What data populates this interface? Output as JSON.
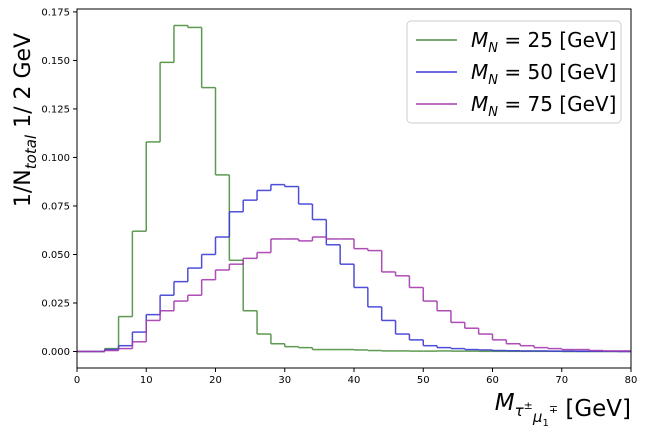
{
  "chart_data": {
    "type": "line",
    "step": true,
    "xlabel": "M_{τ^± μ_1^∓}  [GeV]",
    "ylabel": "1/N_{total} 1/ 2 GeV",
    "xlim": [
      0,
      80
    ],
    "ylim": [
      -0.0085,
      0.1765
    ],
    "xticks": [
      "0",
      "10",
      "20",
      "30",
      "40",
      "50",
      "60",
      "70",
      "80"
    ],
    "yticks": [
      "0.000",
      "0.025",
      "0.050",
      "0.075",
      "0.100",
      "0.125",
      "0.150",
      "0.175"
    ],
    "grid": false,
    "legend_position": "top-right",
    "bin_edges": [
      0,
      2,
      4,
      6,
      8,
      10,
      12,
      14,
      16,
      18,
      20,
      22,
      24,
      26,
      28,
      30,
      32,
      34,
      36,
      38,
      40,
      42,
      44,
      46,
      48,
      50,
      52,
      54,
      56,
      58,
      60,
      62,
      64,
      66,
      68,
      70,
      72,
      74,
      76,
      78,
      80
    ],
    "series": [
      {
        "name": "M_N = 25 [GeV]",
        "color": "#4c8f3f",
        "values": [
          0.0,
          0.0,
          0.0015,
          0.018,
          0.062,
          0.108,
          0.149,
          0.168,
          0.167,
          0.136,
          0.091,
          0.047,
          0.021,
          0.009,
          0.004,
          0.0025,
          0.002,
          0.001,
          0.001,
          0.001,
          0.0008,
          0.0005,
          0.0003,
          0.0003,
          0.0002,
          0.0002,
          0.0003,
          0.0002,
          0.0002,
          0.0001,
          0.0001,
          0.0001,
          0.0001,
          0.0001,
          0.0001,
          0.0,
          0.0,
          0.0,
          0.0,
          0.0
        ]
      },
      {
        "name": "M_N = 50 [GeV]",
        "color": "#3b3bd6",
        "values": [
          0.0,
          0.0,
          0.001,
          0.003,
          0.01,
          0.019,
          0.029,
          0.036,
          0.043,
          0.05,
          0.059,
          0.072,
          0.078,
          0.083,
          0.086,
          0.085,
          0.076,
          0.068,
          0.055,
          0.045,
          0.033,
          0.023,
          0.016,
          0.009,
          0.006,
          0.003,
          0.002,
          0.0015,
          0.001,
          0.0008,
          0.0005,
          0.0004,
          0.0003,
          0.0003,
          0.0002,
          0.0002,
          0.0001,
          0.0001,
          0.0001,
          0.0
        ]
      },
      {
        "name": "M_N = 75 [GeV]",
        "color": "#a43aae",
        "values": [
          0.0,
          0.0,
          0.0005,
          0.0015,
          0.005,
          0.016,
          0.021,
          0.026,
          0.029,
          0.037,
          0.042,
          0.045,
          0.048,
          0.051,
          0.058,
          0.058,
          0.057,
          0.059,
          0.058,
          0.058,
          0.053,
          0.052,
          0.041,
          0.039,
          0.033,
          0.026,
          0.021,
          0.015,
          0.012,
          0.009,
          0.006,
          0.004,
          0.003,
          0.002,
          0.0015,
          0.001,
          0.001,
          0.0005,
          0.0003,
          0.0003
        ]
      }
    ]
  }
}
